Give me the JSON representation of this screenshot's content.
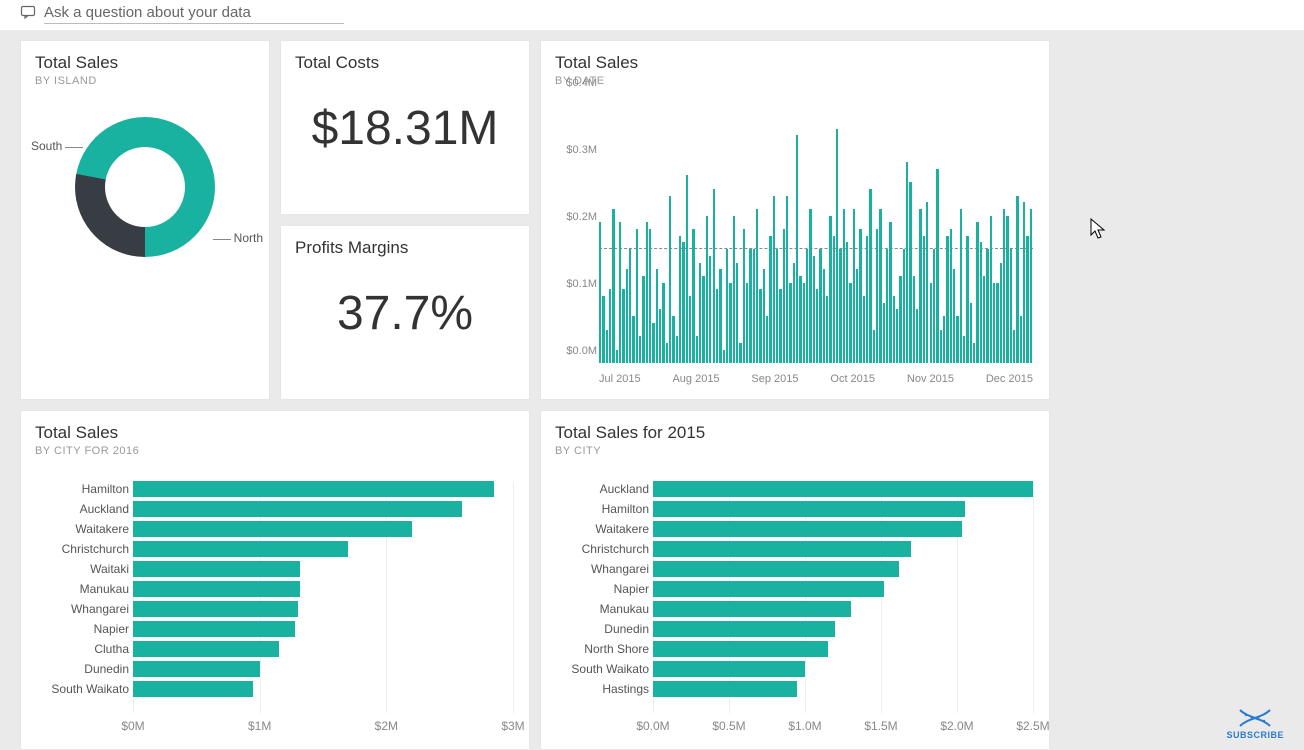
{
  "qna": {
    "placeholder": "Ask a question about your data"
  },
  "palette": {
    "primary": "#19b2a0",
    "dark": "#373d42",
    "grid": "#eeeeee",
    "avg_line": "#888888",
    "text_muted": "#999999",
    "card_bg": "#ffffff"
  },
  "island_card": {
    "title": "Total Sales",
    "subtitle": "By Island",
    "type": "donut",
    "slices": [
      {
        "label": "North",
        "pct": 72,
        "color": "#19b2a0"
      },
      {
        "label": "South",
        "pct": 28,
        "color": "#373d42"
      }
    ]
  },
  "costs_card": {
    "title": "Total Costs",
    "value": "$18.31M"
  },
  "margins_card": {
    "title": "Profits Margins",
    "value": "37.7%"
  },
  "date_card": {
    "title": "Total Sales",
    "subtitle": "By Date",
    "type": "column",
    "ylim": [
      0.0,
      0.4
    ],
    "ytick_step": 0.1,
    "ytick_labels": [
      "$0.0M",
      "$0.1M",
      "$0.2M",
      "$0.3M",
      "$0.4M"
    ],
    "x_labels": [
      "Jul 2015",
      "Aug 2015",
      "Sep 2015",
      "Oct 2015",
      "Nov 2015",
      "Dec 2015"
    ],
    "avg_value": 0.17,
    "bar_color": "#19b2a0",
    "values": [
      0.21,
      0.1,
      0.05,
      0.11,
      0.23,
      0.02,
      0.21,
      0.11,
      0.14,
      0.17,
      0.07,
      0.2,
      0.04,
      0.13,
      0.21,
      0.2,
      0.06,
      0.14,
      0.08,
      0.12,
      0.03,
      0.25,
      0.07,
      0.04,
      0.19,
      0.18,
      0.28,
      0.1,
      0.2,
      0.04,
      0.15,
      0.13,
      0.22,
      0.16,
      0.26,
      0.11,
      0.14,
      0.02,
      0.17,
      0.12,
      0.22,
      0.15,
      0.03,
      0.2,
      0.12,
      0.17,
      0.17,
      0.23,
      0.11,
      0.14,
      0.07,
      0.19,
      0.25,
      0.17,
      0.11,
      0.2,
      0.25,
      0.12,
      0.15,
      0.34,
      0.13,
      0.12,
      0.17,
      0.23,
      0.16,
      0.11,
      0.17,
      0.14,
      0.1,
      0.22,
      0.19,
      0.35,
      0.17,
      0.23,
      0.18,
      0.12,
      0.23,
      0.14,
      0.2,
      0.1,
      0.19,
      0.26,
      0.05,
      0.2,
      0.23,
      0.09,
      0.17,
      0.21,
      0.1,
      0.08,
      0.13,
      0.17,
      0.3,
      0.27,
      0.13,
      0.08,
      0.23,
      0.19,
      0.24,
      0.12,
      0.17,
      0.29,
      0.05,
      0.07,
      0.19,
      0.2,
      0.14,
      0.07,
      0.23,
      0.04,
      0.19,
      0.09,
      0.03,
      0.21,
      0.18,
      0.13,
      0.17,
      0.22,
      0.12,
      0.12,
      0.15,
      0.23,
      0.22,
      0.17,
      0.05,
      0.25,
      0.07,
      0.24,
      0.19,
      0.23
    ]
  },
  "city2016_card": {
    "title": "Total Sales",
    "subtitle": "By City for 2016",
    "type": "hbar",
    "bar_color": "#19b2a0",
    "xlim": [
      0,
      3.0
    ],
    "xtick_step": 1.0,
    "xtick_labels": [
      "$0M",
      "$1M",
      "$2M",
      "$3M"
    ],
    "rows": [
      {
        "label": "Hamilton",
        "value": 2.85
      },
      {
        "label": "Auckland",
        "value": 2.6
      },
      {
        "label": "Waitakere",
        "value": 2.2
      },
      {
        "label": "Christchurch",
        "value": 1.7
      },
      {
        "label": "Waitaki",
        "value": 1.32
      },
      {
        "label": "Manukau",
        "value": 1.32
      },
      {
        "label": "Whangarei",
        "value": 1.3
      },
      {
        "label": "Napier",
        "value": 1.28
      },
      {
        "label": "Clutha",
        "value": 1.15
      },
      {
        "label": "Dunedin",
        "value": 1.0
      },
      {
        "label": "South Waikato",
        "value": 0.95
      }
    ]
  },
  "city2015_card": {
    "title": "Total Sales for 2015",
    "subtitle": "By City",
    "type": "hbar",
    "bar_color": "#19b2a0",
    "xlim": [
      0,
      2.5
    ],
    "xtick_step": 0.5,
    "xtick_labels": [
      "$0.0M",
      "$0.5M",
      "$1.0M",
      "$1.5M",
      "$2.0M",
      "$2.5M"
    ],
    "rows": [
      {
        "label": "Auckland",
        "value": 2.5
      },
      {
        "label": "Hamilton",
        "value": 2.05
      },
      {
        "label": "Waitakere",
        "value": 2.03
      },
      {
        "label": "Christchurch",
        "value": 1.7
      },
      {
        "label": "Whangarei",
        "value": 1.62
      },
      {
        "label": "Napier",
        "value": 1.52
      },
      {
        "label": "Manukau",
        "value": 1.3
      },
      {
        "label": "Dunedin",
        "value": 1.2
      },
      {
        "label": "North Shore",
        "value": 1.15
      },
      {
        "label": "South Waikato",
        "value": 1.0
      },
      {
        "label": "Hastings",
        "value": 0.95
      }
    ]
  },
  "subscribe": {
    "label": "SUBSCRIBE"
  }
}
